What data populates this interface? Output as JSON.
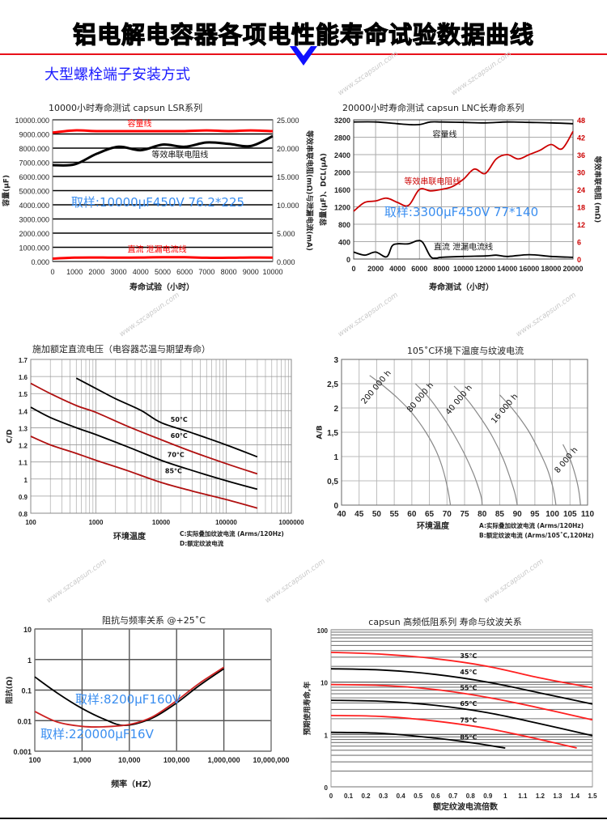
{
  "header": {
    "title": "铝电解电容器各项电性能寿命试验数据曲线",
    "subtitle": "大型螺栓端子安装方式",
    "accent_color": "#e8101a",
    "subtitle_color": "#1a1aff"
  },
  "watermark": "www.szcapsun.com",
  "chart_data": [
    {
      "id": "c1",
      "type": "line",
      "title": "10000小时寿命测试  capsun  LSR系列",
      "xlabel": "寿命试验（小时）",
      "ylabel": "容量(μF)",
      "ylabel_right": "等效串联电阻(mΩ)与泄漏电流(mA)",
      "sample_note": "取样:10000μF450V  76.2*225",
      "xlim": [
        0,
        10000
      ],
      "ylim": [
        0,
        10000
      ],
      "ylim_right": [
        0,
        25
      ],
      "xticks": [
        0,
        1000,
        2000,
        3000,
        4000,
        5000,
        6000,
        7000,
        8000,
        9000,
        10000
      ],
      "xtick_labels": [
        "0",
        "1000",
        "2000",
        "3000",
        "4000",
        "5000",
        "6000",
        "7000",
        "8000",
        "9000",
        "10000"
      ],
      "yticks": [
        0,
        1000,
        2000,
        3000,
        4000,
        5000,
        6000,
        7000,
        8000,
        9000,
        10000
      ],
      "ytick_labels": [
        "0.000",
        "1000.000",
        "2000.000",
        "3000.000",
        "4000.000",
        "5000.000",
        "6000.000",
        "7000.000",
        "8000.000",
        "9000.000",
        "10000.000"
      ],
      "yticks_right": [
        0,
        5,
        10,
        15,
        20,
        25
      ],
      "ytick_labels_right": [
        "0.000",
        "5.000",
        "10.000",
        "15.000",
        "20.000",
        "25.000"
      ],
      "grid": "horizontal",
      "series": [
        {
          "name": "容量线",
          "color": "#ff0000",
          "axis": "left",
          "label_at": [
            3400,
            9550
          ],
          "x": [
            0,
            1000,
            2000,
            3000,
            4000,
            5000,
            6000,
            7000,
            8000,
            9000,
            10000
          ],
          "y": [
            9100,
            9250,
            9200,
            9200,
            9200,
            9200,
            9200,
            9250,
            9200,
            9250,
            9200
          ]
        },
        {
          "name": "等效串联电阻线",
          "color": "#000000",
          "axis": "left",
          "label_at": [
            4500,
            7350
          ],
          "x": [
            0,
            1000,
            2000,
            3000,
            4000,
            5000,
            6000,
            7000,
            8000,
            9000,
            10000
          ],
          "y": [
            6800,
            6850,
            7600,
            8100,
            7850,
            8250,
            8100,
            8400,
            8300,
            8150,
            8850
          ]
        },
        {
          "name": "直流   泄漏电流线",
          "color": "#ff0000",
          "axis": "left",
          "label_at": [
            3400,
            650
          ],
          "x": [
            0,
            1000,
            2000,
            3000,
            4000,
            5000,
            6000,
            7000,
            8000,
            9000,
            10000
          ],
          "y": [
            200,
            270,
            280,
            270,
            280,
            300,
            300,
            260,
            260,
            280,
            270
          ]
        }
      ]
    },
    {
      "id": "c2",
      "type": "line",
      "title": "20000小时寿命测试 capsun LNC长寿命系列",
      "xlabel": "寿命测试（小时）",
      "ylabel": "容量(μF)、DCL(μA)",
      "ylabel_right": "等效串联电阻 (mΩ)",
      "sample_note": "取样:3300μF450V  77*140",
      "xlim": [
        0,
        20000
      ],
      "ylim": [
        0,
        3200
      ],
      "ylim_right": [
        0,
        48
      ],
      "xticks": [
        0,
        2000,
        4000,
        6000,
        8000,
        10000,
        12000,
        14000,
        16000,
        18000,
        20000
      ],
      "xtick_labels": [
        "0",
        "2000",
        "4000",
        "6000",
        "8000",
        "10000",
        "12000",
        "14000",
        "16000",
        "18000",
        "20000"
      ],
      "yticks": [
        0,
        400,
        800,
        1200,
        1600,
        2000,
        2400,
        2800,
        3200
      ],
      "ytick_labels": [
        "0",
        "400",
        "800",
        "1200",
        "1600",
        "2000",
        "2400",
        "2800",
        "3200"
      ],
      "yticks_right": [
        0,
        6,
        12,
        18,
        24,
        30,
        36,
        42,
        48
      ],
      "ytick_labels_right": [
        "0",
        "6",
        "12",
        "18",
        "24",
        "30",
        "36",
        "42",
        "48"
      ],
      "right_axis_color": "#cc0000",
      "grid": "both",
      "series": [
        {
          "name": "容量线",
          "color": "#000000",
          "axis": "left",
          "label_at": [
            7200,
            2800
          ],
          "x": [
            0,
            2000,
            4000,
            5000,
            6000,
            7000,
            8000,
            10000,
            12000,
            14000,
            16000,
            18000,
            20000
          ],
          "y": [
            3150,
            3150,
            3110,
            3090,
            3090,
            3150,
            3150,
            3140,
            3130,
            3150,
            3140,
            3130,
            3110
          ]
        },
        {
          "name": "等效串联电阻线",
          "color": "#cc0000",
          "axis": "right",
          "label_at": [
            4600,
            25.8
          ],
          "x": [
            0,
            1000,
            2000,
            3000,
            4000,
            5000,
            6000,
            7000,
            8000,
            9000,
            10000,
            11000,
            12000,
            13000,
            14000,
            15000,
            16000,
            17000,
            18000,
            19000,
            20000
          ],
          "y": [
            16.5,
            19.5,
            20,
            21,
            19.5,
            18.5,
            24,
            23.5,
            24,
            25,
            27.5,
            31,
            29.5,
            34.5,
            36,
            34.5,
            36,
            37.5,
            39.5,
            38,
            44
          ]
        },
        {
          "name": "直流   泄漏电流线",
          "color": "#000000",
          "axis": "left",
          "label_at": [
            7300,
            210
          ],
          "x": [
            0,
            1000,
            2000,
            3000,
            3500,
            4000,
            5000,
            5800,
            6300,
            7000,
            7500,
            8000,
            10000,
            12000,
            13000,
            14000,
            16000,
            18000,
            20000
          ],
          "y": [
            160,
            90,
            160,
            50,
            300,
            350,
            350,
            420,
            380,
            60,
            20,
            40,
            60,
            70,
            90,
            60,
            100,
            60,
            40
          ]
        }
      ]
    },
    {
      "id": "c3",
      "type": "line",
      "title": "施加额定直流电压（电容器芯温与期望寿命）",
      "xlabel": "环境温度",
      "ylabel": "C/D",
      "notes": [
        "C:实际叠加纹波电流 (Arms/120Hz)",
        "D:额定纹波电流"
      ],
      "xscale": "log",
      "xlim": [
        100,
        1000000
      ],
      "ylim": [
        0.8,
        1.7
      ],
      "xticks": [
        100,
        1000,
        10000,
        100000,
        1000000
      ],
      "xtick_labels": [
        "100",
        "1000",
        "10000",
        "100000",
        "1000000"
      ],
      "yticks": [
        0.8,
        0.9,
        1,
        1.1,
        1.2,
        1.3,
        1.4,
        1.5,
        1.6,
        1.7
      ],
      "ytick_labels": [
        "0.8",
        "0.9",
        "1",
        "1.1",
        "1.2",
        "1.3",
        "1.4",
        "1.5",
        "1.6",
        "1.7"
      ],
      "grid": "both-log-minor",
      "series": [
        {
          "name": "50°C",
          "color": "#000000",
          "label_at": [
            14000,
            1.335
          ],
          "x": [
            500,
            1000,
            2000,
            5000,
            10000,
            30000,
            100000,
            300000
          ],
          "y": [
            1.59,
            1.53,
            1.47,
            1.4,
            1.33,
            1.27,
            1.2,
            1.13
          ]
        },
        {
          "name": "60°C",
          "color": "#b01010",
          "label_at": [
            14000,
            1.24
          ],
          "x": [
            100,
            200,
            500,
            1000,
            3000,
            10000,
            30000,
            100000,
            300000
          ],
          "y": [
            1.56,
            1.5,
            1.43,
            1.39,
            1.31,
            1.23,
            1.16,
            1.09,
            1.03
          ]
        },
        {
          "name": "70°C",
          "color": "#000000",
          "label_at": [
            12500,
            1.13
          ],
          "x": [
            100,
            200,
            500,
            1000,
            3000,
            10000,
            30000,
            100000,
            300000
          ],
          "y": [
            1.42,
            1.36,
            1.3,
            1.26,
            1.19,
            1.11,
            1.05,
            0.99,
            0.94
          ]
        },
        {
          "name": "85°C",
          "color": "#b01010",
          "label_at": [
            11500,
            1.035
          ],
          "x": [
            100,
            200,
            500,
            1000,
            3000,
            10000,
            30000,
            100000,
            300000
          ],
          "y": [
            1.25,
            1.2,
            1.15,
            1.11,
            1.05,
            0.98,
            0.93,
            0.88,
            0.83
          ]
        }
      ]
    },
    {
      "id": "c4",
      "type": "line",
      "title": "105˚C环境下温度与纹波电流",
      "xlabel": "环境温度",
      "ylabel": "A/B",
      "notes": [
        "A:实际叠加纹波电流 (Arms/120Hz)",
        "B:额定纹波电流 (Arms/105˚C,120Hz)"
      ],
      "xlim": [
        40,
        110
      ],
      "ylim": [
        0,
        3
      ],
      "xticks": [
        40,
        45,
        50,
        55,
        60,
        65,
        70,
        75,
        80,
        85,
        90,
        95,
        100,
        105,
        110
      ],
      "xtick_labels": [
        "40",
        "45",
        "50",
        "55",
        "60",
        "65",
        "70",
        "75",
        "80",
        "85",
        "90",
        "95",
        "100",
        "105",
        "110"
      ],
      "yticks": [
        0,
        0.5,
        1,
        1.5,
        2,
        2.5,
        3
      ],
      "ytick_labels": [
        "0",
        "0,5",
        "1",
        "1,5",
        "2",
        "2,5",
        "3"
      ],
      "grid": "both",
      "series": [
        {
          "name": "200 000 h",
          "color": "#888888",
          "x": [
            48,
            52,
            56,
            60,
            64,
            67,
            69,
            70.3,
            71
          ],
          "y": [
            2.67,
            2.45,
            2.2,
            1.9,
            1.5,
            1.1,
            0.7,
            0.3,
            0
          ]
        },
        {
          "name": "80 000 h",
          "color": "#888888",
          "x": [
            61,
            65,
            69,
            72,
            75,
            77.5,
            79,
            79.8,
            80
          ],
          "y": [
            2.5,
            2.2,
            1.8,
            1.45,
            1.05,
            0.65,
            0.35,
            0.15,
            0
          ]
        },
        {
          "name": "40 000 h",
          "color": "#888888",
          "x": [
            72,
            76,
            80,
            83,
            86,
            88,
            89.3,
            90
          ],
          "y": [
            2.45,
            2.15,
            1.75,
            1.4,
            0.95,
            0.55,
            0.25,
            0
          ]
        },
        {
          "name": "16 000 h",
          "color": "#888888",
          "x": [
            85,
            89,
            93,
            96,
            98.5,
            100,
            100.7,
            101
          ],
          "y": [
            2.27,
            1.95,
            1.55,
            1.15,
            0.75,
            0.4,
            0.15,
            0
          ]
        },
        {
          "name": "8 000 h",
          "color": "#888888",
          "x": [
            103,
            105,
            106.5,
            107.5,
            108
          ],
          "y": [
            1.25,
            0.95,
            0.62,
            0.3,
            0
          ]
        }
      ]
    },
    {
      "id": "c5",
      "type": "line",
      "title": "阻抗与频率关系  @+25˚C",
      "xlabel": "频率（HZ）",
      "ylabel": "阻抗(Ω)",
      "xscale": "log",
      "yscale": "log",
      "xlim": [
        100,
        10000000
      ],
      "ylim": [
        0.001,
        10
      ],
      "xticks": [
        100,
        1000,
        10000,
        100000,
        1000000,
        10000000
      ],
      "xtick_labels": [
        "100",
        "1,000",
        "10,000",
        "100,000",
        "1,000,000",
        "10,000,000"
      ],
      "yticks": [
        0.001,
        0.01,
        0.1,
        1,
        10
      ],
      "ytick_labels": [
        "0.001",
        "0.01",
        "0.1",
        "1",
        "10"
      ],
      "grid": "both",
      "series": [
        {
          "name": "取样:8200μF160V",
          "color": "#000000",
          "x": [
            100,
            300,
            1000,
            3000,
            8000,
            30000,
            100000,
            300000,
            1000000
          ],
          "y": [
            0.27,
            0.08,
            0.025,
            0.011,
            0.007,
            0.012,
            0.038,
            0.14,
            0.5
          ]
        },
        {
          "name": "取样:220000μF16V",
          "color": "#cc2222",
          "x": [
            100,
            300,
            1000,
            3000,
            10000,
            30000,
            100000,
            300000,
            1000000
          ],
          "y": [
            0.02,
            0.009,
            0.0065,
            0.0063,
            0.0075,
            0.013,
            0.045,
            0.165,
            0.56
          ]
        }
      ]
    },
    {
      "id": "c6",
      "type": "line",
      "title": "capsun  高频低阻系列  寿命与纹波关系",
      "xlabel": "额定纹波电流倍数",
      "ylabel": "预期使用寿命,年",
      "yscale": "log",
      "xlim": [
        0,
        1.5
      ],
      "ylim": [
        0.1,
        100
      ],
      "xticks": [
        0,
        0.1,
        0.2,
        0.3,
        0.4,
        0.5,
        0.6,
        0.7,
        0.8,
        0.9,
        1,
        1.1,
        1.2,
        1.3,
        1.4,
        1.5
      ],
      "xtick_labels": [
        "0",
        "0.1",
        "0.2",
        "0.3",
        "0.4",
        "0.5",
        "0.6",
        "0.7",
        "0.8",
        "0.9",
        "1",
        "1.1",
        "1.2",
        "1.3",
        "1.4",
        "1.5"
      ],
      "yticks": [
        0.1,
        1,
        10,
        100
      ],
      "ytick_labels": [
        "0",
        "1",
        "10",
        "100"
      ],
      "grid": "horizontal-log-minor",
      "series": [
        {
          "name": "35°C",
          "color": "#ff2020",
          "label_at": [
            0.74,
            29
          ],
          "x": [
            0,
            0.3,
            0.6,
            0.9,
            1.2,
            1.5
          ],
          "y": [
            37,
            34,
            28,
            20,
            12,
            7.8
          ]
        },
        {
          "name": "45°C",
          "color": "#000000",
          "label_at": [
            0.74,
            14
          ],
          "x": [
            0,
            0.3,
            0.6,
            0.9,
            1.2,
            1.5
          ],
          "y": [
            18,
            17,
            14,
            10,
            6.2,
            3.8
          ]
        },
        {
          "name": "55°C",
          "color": "#ff2020",
          "label_at": [
            0.74,
            7.1
          ],
          "x": [
            0,
            0.3,
            0.6,
            0.9,
            1.2,
            1.5
          ],
          "y": [
            9,
            8.6,
            7.2,
            5.1,
            3.2,
            1.9
          ]
        },
        {
          "name": "65°C",
          "color": "#000000",
          "label_at": [
            0.74,
            3.5
          ],
          "x": [
            0,
            0.3,
            0.6,
            0.9,
            1.2,
            1.5
          ],
          "y": [
            4.5,
            4.3,
            3.6,
            2.6,
            1.6,
            0.95
          ]
        },
        {
          "name": "75°C",
          "color": "#ff2020",
          "label_at": [
            0.74,
            1.7
          ],
          "x": [
            0,
            0.3,
            0.6,
            0.9,
            1.2,
            1.41
          ],
          "y": [
            2.3,
            2.2,
            1.8,
            1.3,
            0.8,
            0.55
          ]
        },
        {
          "name": "85°C",
          "color": "#000000",
          "label_at": [
            0.74,
            0.8
          ],
          "x": [
            0,
            0.3,
            0.6,
            0.8,
            1.0
          ],
          "y": [
            1.1,
            1.05,
            0.85,
            0.7,
            0.55
          ]
        }
      ]
    }
  ]
}
